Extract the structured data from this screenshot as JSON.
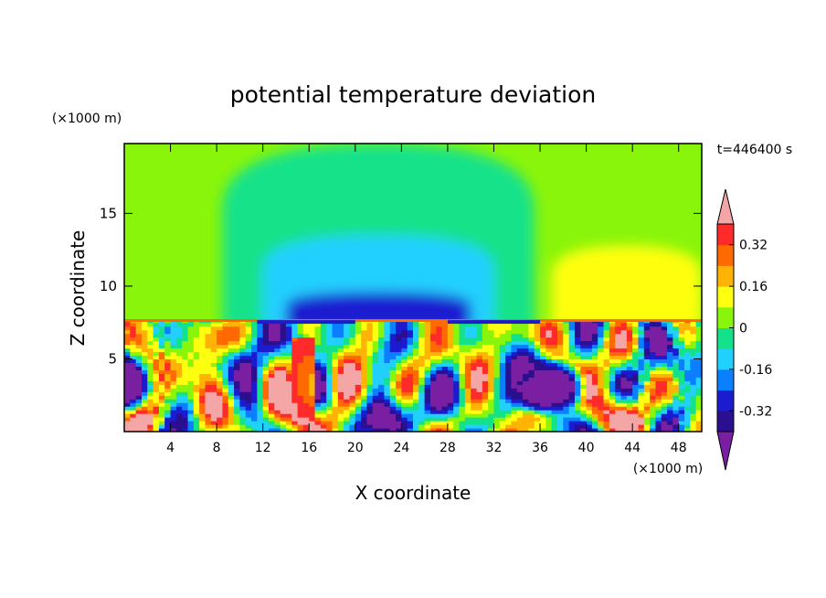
{
  "chart_data": {
    "type": "heatmap",
    "title": "potential temperature deviation",
    "xlabel": "X coordinate",
    "ylabel": "Z coordinate",
    "x_unit": "(×1000 m)",
    "y_unit": "(×1000 m)",
    "time_label": "t=446400 s",
    "xlim": [
      0,
      50
    ],
    "ylim": [
      0,
      19.8
    ],
    "xticks": [
      4,
      8,
      12,
      16,
      20,
      24,
      28,
      32,
      36,
      40,
      44,
      48
    ],
    "yticks": [
      5,
      10,
      15
    ],
    "colorbar": {
      "levels": [
        -0.4,
        -0.32,
        -0.24,
        -0.16,
        -0.08,
        0,
        0.08,
        0.16,
        0.24,
        0.32,
        0.4
      ],
      "colors": [
        "#7b1fa2",
        "#2a0f8f",
        "#1b1bd0",
        "#0a7fff",
        "#22d0ff",
        "#13e28a",
        "#89f50a",
        "#ffff10",
        "#ffb405",
        "#ff6a00",
        "#ff2a2a",
        "#f4a6a6"
      ],
      "tick_labels": [
        "0.32",
        "0.16",
        "0",
        "-0.16",
        "-0.32"
      ],
      "tick_values": [
        0.32,
        0.16,
        0,
        -0.16,
        -0.32
      ]
    },
    "regions": [
      {
        "kind": "upper_background",
        "value": 0.04,
        "x": [
          0,
          50
        ],
        "z": [
          7.6,
          19.8
        ]
      },
      {
        "kind": "upper_cool_plume",
        "value": -0.02,
        "x": [
          8.5,
          35.5
        ],
        "z": [
          7.6,
          19.8
        ]
      },
      {
        "kind": "upper_cold_core",
        "value": -0.12,
        "x": [
          12,
          32
        ],
        "z": [
          7.6,
          13.5
        ]
      },
      {
        "kind": "upper_cold_center",
        "value": -0.26,
        "x": [
          14,
          30
        ],
        "z": [
          7.6,
          9.6
        ]
      },
      {
        "kind": "upper_warm_patch",
        "value": 0.12,
        "x": [
          37,
          50
        ],
        "z": [
          7.6,
          12.8
        ]
      },
      {
        "kind": "lower_turbulent_layer",
        "value_range": [
          -0.4,
          0.4
        ],
        "x": [
          0,
          50
        ],
        "z": [
          0,
          7.6
        ]
      },
      {
        "kind": "cold_eddy",
        "value": -0.4,
        "x": [
          33,
          40
        ],
        "z": [
          1.2,
          5.0
        ]
      },
      {
        "kind": "warm_column",
        "value": 0.38,
        "x": [
          14.5,
          16.5
        ],
        "z": [
          0.4,
          6.5
        ]
      }
    ]
  }
}
